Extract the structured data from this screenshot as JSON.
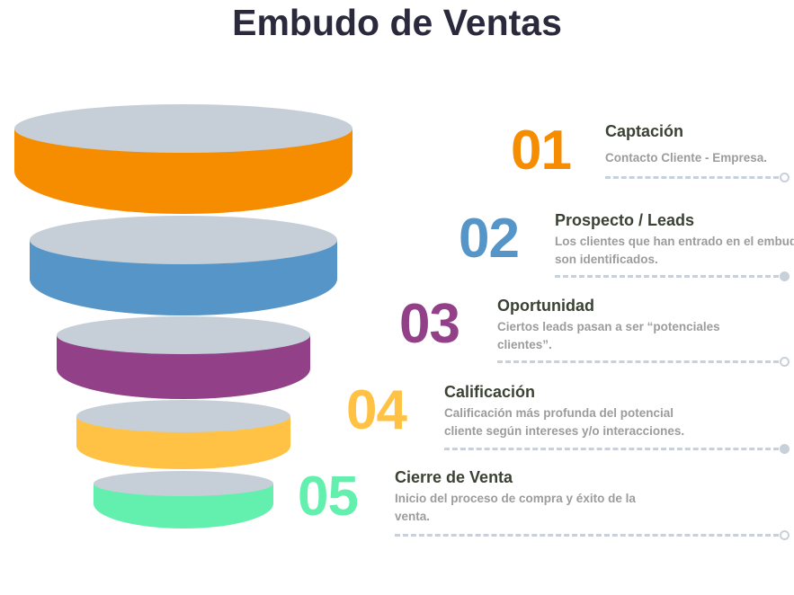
{
  "title": "Embudo de Ventas",
  "colors": {
    "disc_top": "#c6cfd8",
    "title_text": "#3a4234",
    "desc_text": "#9c9c9c",
    "connector": "#c8d0da"
  },
  "steps": [
    {
      "number": "01",
      "title": "Captación",
      "description": "Contacto Cliente - Empresa.",
      "color": "#f68c00",
      "end_marker": "hollow-circle"
    },
    {
      "number": "02",
      "title": "Prospecto / Leads",
      "description": "Los clientes que han entrado en el embudo son identificados.",
      "color": "#5595c8",
      "end_marker": "filled-circle"
    },
    {
      "number": "03",
      "title": "Oportunidad",
      "description": "Ciertos leads pasan a ser “potenciales clientes”.",
      "color": "#924189",
      "end_marker": "hollow-circle"
    },
    {
      "number": "04",
      "title": "Calificación",
      "description": "Calificación más profunda del potencial cliente según intereses y/o interacciones.",
      "color": "#ffc244",
      "end_marker": "filled-circle"
    },
    {
      "number": "05",
      "title": "Cierre de Venta",
      "description": "Inicio del proceso de compra y éxito de la venta.",
      "color": "#63efad",
      "end_marker": "hollow-circle"
    }
  ]
}
